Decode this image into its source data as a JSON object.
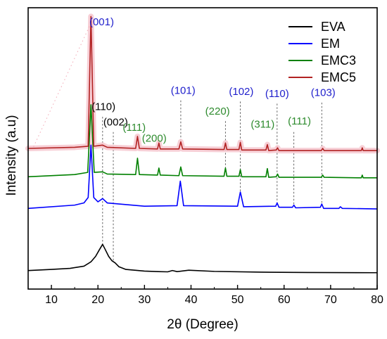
{
  "chart_data": {
    "type": "line",
    "title": "",
    "xlabel": "2θ (Degree)",
    "ylabel": "Intensity (a.u)",
    "xlim": [
      5,
      80
    ],
    "x_ticks": [
      10,
      20,
      30,
      40,
      50,
      60,
      70,
      80
    ],
    "y_ticks_shown": false,
    "grid": false,
    "legend_position": "top-right",
    "series": [
      {
        "name": "EVA",
        "color": "#000000",
        "points": [
          [
            5,
            0.05
          ],
          [
            10,
            0.06
          ],
          [
            14,
            0.07
          ],
          [
            17,
            0.09
          ],
          [
            18.5,
            0.13
          ],
          [
            19.5,
            0.18
          ],
          [
            20.3,
            0.24
          ],
          [
            21.0,
            0.29
          ],
          [
            21.6,
            0.24
          ],
          [
            22.3,
            0.18
          ],
          [
            23.0,
            0.14
          ],
          [
            23.7,
            0.12
          ],
          [
            24.5,
            0.085
          ],
          [
            26,
            0.06
          ],
          [
            30,
            0.045
          ],
          [
            33,
            0.04
          ],
          [
            35,
            0.038
          ],
          [
            36,
            0.05
          ],
          [
            37,
            0.04
          ],
          [
            39.5,
            0.053
          ],
          [
            45,
            0.042
          ],
          [
            55,
            0.035
          ],
          [
            65,
            0.032
          ],
          [
            80,
            0.03
          ]
        ]
      },
      {
        "name": "EM",
        "color": "#0000ff",
        "points": [
          [
            5,
            0.62
          ],
          [
            15,
            0.65
          ],
          [
            17,
            0.67
          ],
          [
            17.9,
            0.72
          ],
          [
            18.5,
            1.2
          ],
          [
            19.1,
            0.72
          ],
          [
            20,
            0.68
          ],
          [
            21.0,
            0.71
          ],
          [
            22,
            0.67
          ],
          [
            30,
            0.64
          ],
          [
            37,
            0.645
          ],
          [
            37.7,
            0.87
          ],
          [
            38.4,
            0.645
          ],
          [
            50,
            0.64
          ],
          [
            50.6,
            0.77
          ],
          [
            51.3,
            0.635
          ],
          [
            58.2,
            0.64
          ],
          [
            58.5,
            0.67
          ],
          [
            58.9,
            0.63
          ],
          [
            61.8,
            0.63
          ],
          [
            62.1,
            0.65
          ],
          [
            62.5,
            0.625
          ],
          [
            67.8,
            0.63
          ],
          [
            68.1,
            0.66
          ],
          [
            68.5,
            0.62
          ],
          [
            71.8,
            0.62
          ],
          [
            72.1,
            0.635
          ],
          [
            72.5,
            0.62
          ],
          [
            80,
            0.615
          ]
        ]
      },
      {
        "name": "EMC3",
        "color": "#008000",
        "points": [
          [
            5,
            0.91
          ],
          [
            15,
            0.93
          ],
          [
            17.8,
            0.95
          ],
          [
            18.5,
            1.57
          ],
          [
            19.2,
            0.95
          ],
          [
            21.0,
            0.955
          ],
          [
            22,
            0.935
          ],
          [
            28.1,
            0.93
          ],
          [
            28.5,
            1.08
          ],
          [
            28.9,
            0.93
          ],
          [
            32.8,
            0.925
          ],
          [
            33.1,
            0.99
          ],
          [
            33.4,
            0.925
          ],
          [
            37.4,
            0.92
          ],
          [
            37.8,
            1.0
          ],
          [
            38.2,
            0.92
          ],
          [
            47.1,
            0.915
          ],
          [
            47.4,
            0.99
          ],
          [
            47.7,
            0.915
          ],
          [
            50.3,
            0.915
          ],
          [
            50.6,
            0.975
          ],
          [
            50.9,
            0.91
          ],
          [
            56.1,
            0.91
          ],
          [
            56.4,
            0.985
          ],
          [
            56.7,
            0.905
          ],
          [
            58.3,
            0.91
          ],
          [
            58.6,
            0.935
          ],
          [
            58.9,
            0.905
          ],
          [
            68,
            0.905
          ],
          [
            68.3,
            0.925
          ],
          [
            68.6,
            0.905
          ],
          [
            76.6,
            0.9
          ],
          [
            76.8,
            0.925
          ],
          [
            77,
            0.9
          ],
          [
            80,
            0.9
          ]
        ]
      },
      {
        "name": "EMC5",
        "color": "#b22222",
        "points": [
          [
            5,
            1.17
          ],
          [
            15,
            1.18
          ],
          [
            17.9,
            1.19
          ],
          [
            18.5,
            2.38
          ],
          [
            19.1,
            1.19
          ],
          [
            21.0,
            1.2
          ],
          [
            22,
            1.18
          ],
          [
            28.1,
            1.17
          ],
          [
            28.5,
            1.28
          ],
          [
            28.9,
            1.17
          ],
          [
            32.8,
            1.165
          ],
          [
            33.1,
            1.22
          ],
          [
            33.4,
            1.165
          ],
          [
            37.4,
            1.165
          ],
          [
            37.8,
            1.23
          ],
          [
            38.2,
            1.165
          ],
          [
            47.1,
            1.16
          ],
          [
            47.4,
            1.22
          ],
          [
            47.7,
            1.16
          ],
          [
            50.3,
            1.16
          ],
          [
            50.6,
            1.225
          ],
          [
            50.9,
            1.155
          ],
          [
            56.1,
            1.155
          ],
          [
            56.4,
            1.205
          ],
          [
            56.7,
            1.15
          ],
          [
            58.3,
            1.155
          ],
          [
            58.6,
            1.175
          ],
          [
            58.9,
            1.15
          ],
          [
            68,
            1.15
          ],
          [
            68.3,
            1.17
          ],
          [
            68.6,
            1.15
          ],
          [
            76.6,
            1.15
          ],
          [
            76.8,
            1.175
          ],
          [
            77,
            1.15
          ],
          [
            80,
            1.15
          ]
        ]
      }
    ],
    "reference_lines": [
      {
        "x": 21.0,
        "y_bottom": 0.29,
        "y_top": 1.46
      },
      {
        "x": 23.3,
        "y_bottom": 0.14,
        "y_top": 1.32
      },
      {
        "x": 47.4,
        "y_bottom": 0.99,
        "y_top": 1.42
      },
      {
        "x": 50.6,
        "y_bottom": 0.77,
        "y_top": 1.6
      },
      {
        "x": 58.5,
        "y_bottom": 0.67,
        "y_top": 1.58
      },
      {
        "x": 62.1,
        "y_bottom": 0.65,
        "y_top": 1.32
      },
      {
        "x": 68.1,
        "y_bottom": 0.66,
        "y_top": 1.59
      },
      {
        "x": 37.8,
        "y_bottom": 1.23,
        "y_top": 1.61
      }
    ],
    "annotations": [
      {
        "text": "(001)",
        "x": 20.8,
        "y": 2.3,
        "color": "#1f1fcc"
      },
      {
        "text": "(110)",
        "x": 21.2,
        "y": 1.52,
        "color": "#000000"
      },
      {
        "text": "(002)",
        "x": 23.8,
        "y": 1.38,
        "color": "#000000"
      },
      {
        "text": "(111)",
        "x": 27.8,
        "y": 1.33,
        "color": "#2e8b2e"
      },
      {
        "text": "(200)",
        "x": 32.1,
        "y": 1.23,
        "color": "#2e8b2e"
      },
      {
        "text": "(101)",
        "x": 38.3,
        "y": 1.67,
        "color": "#1f1fcc"
      },
      {
        "text": "(220)",
        "x": 45.7,
        "y": 1.48,
        "color": "#2e8b2e"
      },
      {
        "text": "(102)",
        "x": 50.8,
        "y": 1.66,
        "color": "#1f1fcc"
      },
      {
        "text": "(311)",
        "x": 55.4,
        "y": 1.36,
        "color": "#2e8b2e"
      },
      {
        "text": "(110)",
        "x": 58.5,
        "y": 1.64,
        "color": "#1f1fcc"
      },
      {
        "text": "(111)",
        "x": 63.3,
        "y": 1.39,
        "color": "#2e8b2e"
      },
      {
        "text": "(103)",
        "x": 68.4,
        "y": 1.65,
        "color": "#1f1fcc"
      }
    ]
  }
}
